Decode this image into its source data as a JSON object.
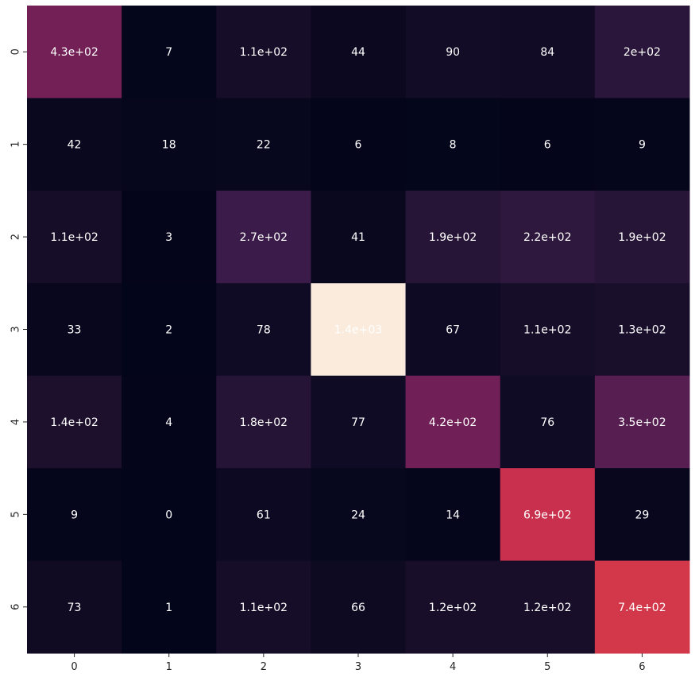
{
  "chart_data": {
    "type": "heatmap",
    "title": "",
    "xlabel": "",
    "ylabel": "",
    "x_tick_labels": [
      "0",
      "1",
      "2",
      "3",
      "4",
      "5",
      "6"
    ],
    "y_tick_labels": [
      "0",
      "1",
      "2",
      "3",
      "4",
      "5",
      "6"
    ],
    "values": [
      [
        430,
        7,
        110,
        44,
        90,
        84,
        200
      ],
      [
        42,
        18,
        22,
        6,
        8,
        6,
        9
      ],
      [
        110,
        3,
        270,
        41,
        190,
        220,
        190
      ],
      [
        33,
        2,
        78,
        1400,
        67,
        110,
        130
      ],
      [
        140,
        4,
        180,
        77,
        420,
        76,
        350
      ],
      [
        9,
        0,
        61,
        24,
        14,
        690,
        29
      ],
      [
        73,
        1,
        110,
        66,
        120,
        120,
        740
      ]
    ],
    "annotations": [
      [
        "4.3e+02",
        "7",
        "1.1e+02",
        "44",
        "90",
        "84",
        "2e+02"
      ],
      [
        "42",
        "18",
        "22",
        "6",
        "8",
        "6",
        "9"
      ],
      [
        "1.1e+02",
        "3",
        "2.7e+02",
        "41",
        "1.9e+02",
        "2.2e+02",
        "1.9e+02"
      ],
      [
        "33",
        "2",
        "78",
        "1.4e+03",
        "67",
        "1.1e+02",
        "1.3e+02"
      ],
      [
        "1.4e+02",
        "4",
        "1.8e+02",
        "77",
        "4.2e+02",
        "76",
        "3.5e+02"
      ],
      [
        "9",
        "0",
        "61",
        "24",
        "14",
        "6.9e+02",
        "29"
      ],
      [
        "73",
        "1",
        "1.1e+02",
        "66",
        "1.2e+02",
        "1.2e+02",
        "7.4e+02"
      ]
    ],
    "colormap": "rocket",
    "vmin": 0,
    "vmax": 1400,
    "colorbar": false,
    "grid": false
  }
}
